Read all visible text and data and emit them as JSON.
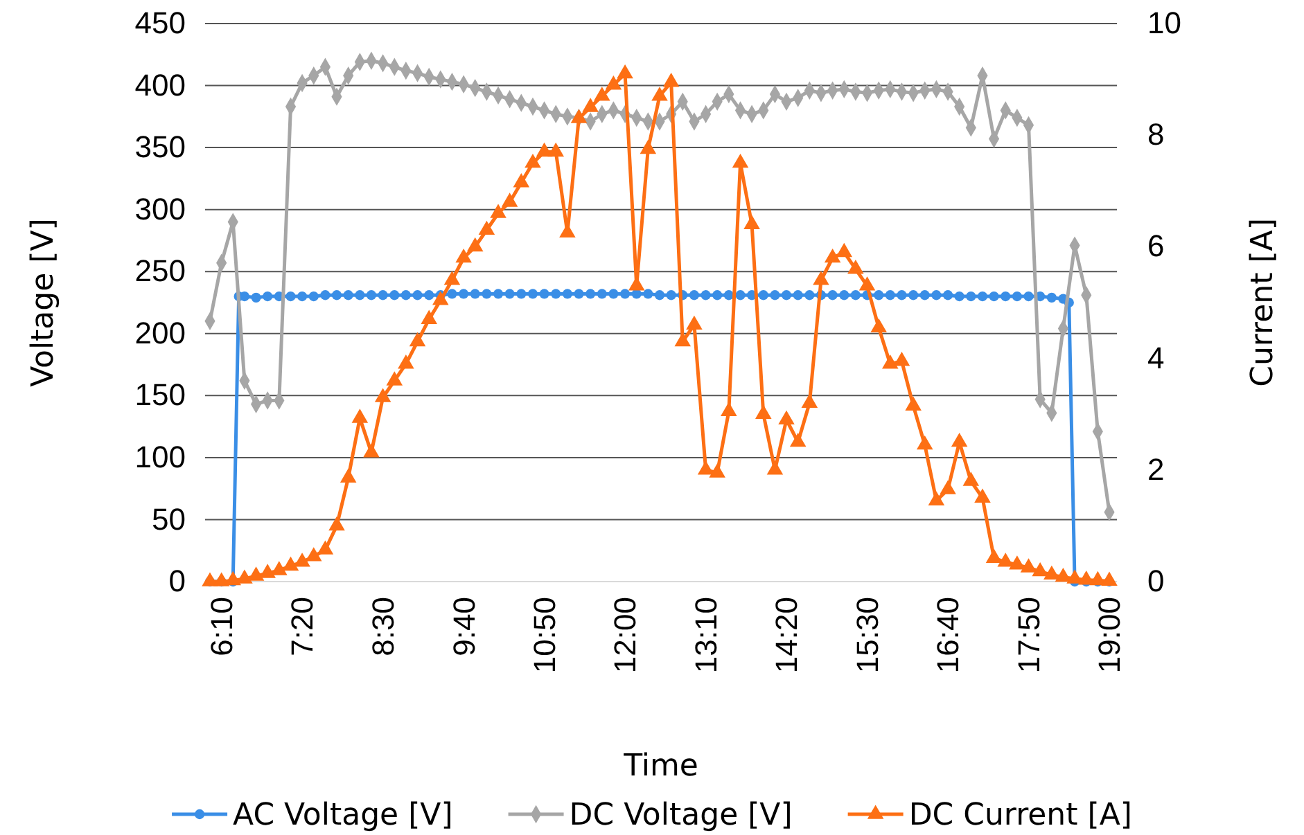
{
  "chart_data": {
    "type": "line",
    "xlabel": "Time",
    "ylabel": "Voltage [V]",
    "y2label": "Current [A]",
    "xlim": [
      5.93,
      19.11
    ],
    "xticks": [
      {
        "value": 6.167,
        "label": "6:10"
      },
      {
        "value": 7.333,
        "label": "7:20"
      },
      {
        "value": 8.5,
        "label": "8:30"
      },
      {
        "value": 9.667,
        "label": "9:40"
      },
      {
        "value": 10.833,
        "label": "10:50"
      },
      {
        "value": 12,
        "label": "12:00"
      },
      {
        "value": 13.167,
        "label": "13:10"
      },
      {
        "value": 14.333,
        "label": "14:20"
      },
      {
        "value": 15.5,
        "label": "15:30"
      },
      {
        "value": 16.667,
        "label": "16:40"
      },
      {
        "value": 17.833,
        "label": "17:50"
      },
      {
        "value": 19,
        "label": "19:00"
      }
    ],
    "ylim": [
      0,
      450
    ],
    "yticks": [
      0,
      50,
      100,
      150,
      200,
      250,
      300,
      350,
      400,
      450
    ],
    "y2lim": [
      0,
      10
    ],
    "y2ticks": [
      0,
      2,
      4,
      6,
      8,
      10
    ],
    "grid": "y",
    "legend": "bottom",
    "line_style": "solid",
    "x": [
      6,
      6.167,
      6.333,
      6.5,
      6.667,
      6.833,
      7,
      7.167,
      7.333,
      7.5,
      7.667,
      7.833,
      8,
      8.167,
      8.333,
      8.5,
      8.667,
      8.833,
      9,
      9.167,
      9.333,
      9.5,
      9.667,
      9.833,
      10,
      10.167,
      10.333,
      10.5,
      10.667,
      10.833,
      11,
      11.167,
      11.333,
      11.5,
      11.667,
      11.833,
      12,
      12.167,
      12.333,
      12.5,
      12.667,
      12.833,
      13,
      13.167,
      13.333,
      13.5,
      13.667,
      13.833,
      14,
      14.167,
      14.333,
      14.5,
      14.667,
      14.833,
      15,
      15.167,
      15.333,
      15.5,
      15.667,
      15.833,
      16,
      16.167,
      16.333,
      16.5,
      16.667,
      16.833,
      17,
      17.167,
      17.333,
      17.5,
      17.667,
      17.833,
      18,
      18.167,
      18.333,
      18.5,
      18.667,
      18.833,
      19
    ],
    "series": [
      {
        "name": "AC Voltage [V]",
        "color": "#3a8ee6",
        "marker": "circle",
        "x": [
          6,
          6.167,
          6.333,
          6.417,
          6.5,
          6.667,
          6.833,
          7,
          7.167,
          7.333,
          7.5,
          7.667,
          7.833,
          8,
          8.167,
          8.333,
          8.5,
          8.667,
          8.833,
          9,
          9.167,
          9.333,
          9.5,
          9.667,
          9.833,
          10,
          10.167,
          10.333,
          10.5,
          10.667,
          10.833,
          11,
          11.167,
          11.333,
          11.5,
          11.667,
          11.833,
          12,
          12.167,
          12.333,
          12.5,
          12.667,
          12.833,
          13,
          13.167,
          13.333,
          13.5,
          13.667,
          13.833,
          14,
          14.167,
          14.333,
          14.5,
          14.667,
          14.833,
          15,
          15.167,
          15.333,
          15.5,
          15.667,
          15.833,
          16,
          16.167,
          16.333,
          16.5,
          16.667,
          16.833,
          17,
          17.167,
          17.333,
          17.5,
          17.667,
          17.833,
          18,
          18.167,
          18.333,
          18.417,
          18.5,
          18.667,
          18.833,
          19
        ],
        "values": [
          0,
          0,
          0,
          230,
          230,
          229,
          230,
          230,
          230,
          230,
          230,
          231,
          231,
          231,
          231,
          231,
          231,
          231,
          231,
          231,
          231,
          231,
          232,
          232,
          232,
          232,
          232,
          232,
          232,
          232,
          232,
          232,
          232,
          232,
          232,
          232,
          232,
          232,
          232,
          232,
          231,
          231,
          231,
          231,
          231,
          231,
          231,
          231,
          231,
          231,
          231,
          231,
          231,
          231,
          231,
          231,
          231,
          231,
          231,
          231,
          231,
          231,
          231,
          231,
          231,
          231,
          230,
          230,
          230,
          230,
          230,
          230,
          230,
          230,
          229,
          228,
          225,
          0,
          0,
          0,
          0
        ]
      },
      {
        "name": "DC Voltage [V]",
        "color": "#a6a6a6",
        "marker": "diamond",
        "values": [
          210,
          257,
          290,
          162,
          143,
          146,
          146,
          383,
          402,
          408,
          415,
          391,
          408,
          419,
          420,
          418,
          415,
          412,
          410,
          407,
          405,
          403,
          401,
          398,
          395,
          392,
          389,
          386,
          383,
          380,
          377,
          375,
          374,
          371,
          377,
          380,
          377,
          374,
          371,
          371,
          377,
          387,
          371,
          377,
          387,
          393,
          380,
          377,
          380,
          393,
          387,
          390,
          396,
          394,
          396,
          397,
          395,
          394,
          396,
          397,
          395,
          394,
          396,
          397,
          395,
          383,
          366,
          408,
          357,
          380,
          374,
          368,
          147,
          136,
          204,
          271,
          231,
          121,
          56
        ]
      },
      {
        "name": "DC Current [A]",
        "color": "#fd6f14",
        "marker": "triangle",
        "axis": "y2",
        "values": [
          0,
          0,
          0.02,
          0.05,
          0.1,
          0.15,
          0.2,
          0.28,
          0.35,
          0.45,
          0.57,
          1.0,
          1.86,
          2.93,
          2.31,
          3.3,
          3.6,
          3.9,
          4.3,
          4.7,
          5.04,
          5.4,
          5.8,
          6.0,
          6.3,
          6.6,
          6.8,
          7.15,
          7.5,
          7.7,
          7.7,
          6.25,
          8.3,
          8.5,
          8.7,
          8.9,
          9.1,
          5.3,
          7.75,
          8.7,
          8.95,
          4.3,
          4.6,
          2.0,
          1.95,
          3.05,
          7.5,
          6.4,
          3.0,
          2.0,
          2.9,
          2.5,
          3.2,
          5.4,
          5.8,
          5.9,
          5.6,
          5.3,
          4.55,
          3.9,
          3.95,
          3.15,
          2.45,
          1.45,
          1.65,
          2.5,
          1.8,
          1.5,
          0.42,
          0.35,
          0.3,
          0.25,
          0.18,
          0.12,
          0.08,
          0.05,
          0.03,
          0.02,
          0.01
        ]
      }
    ]
  }
}
